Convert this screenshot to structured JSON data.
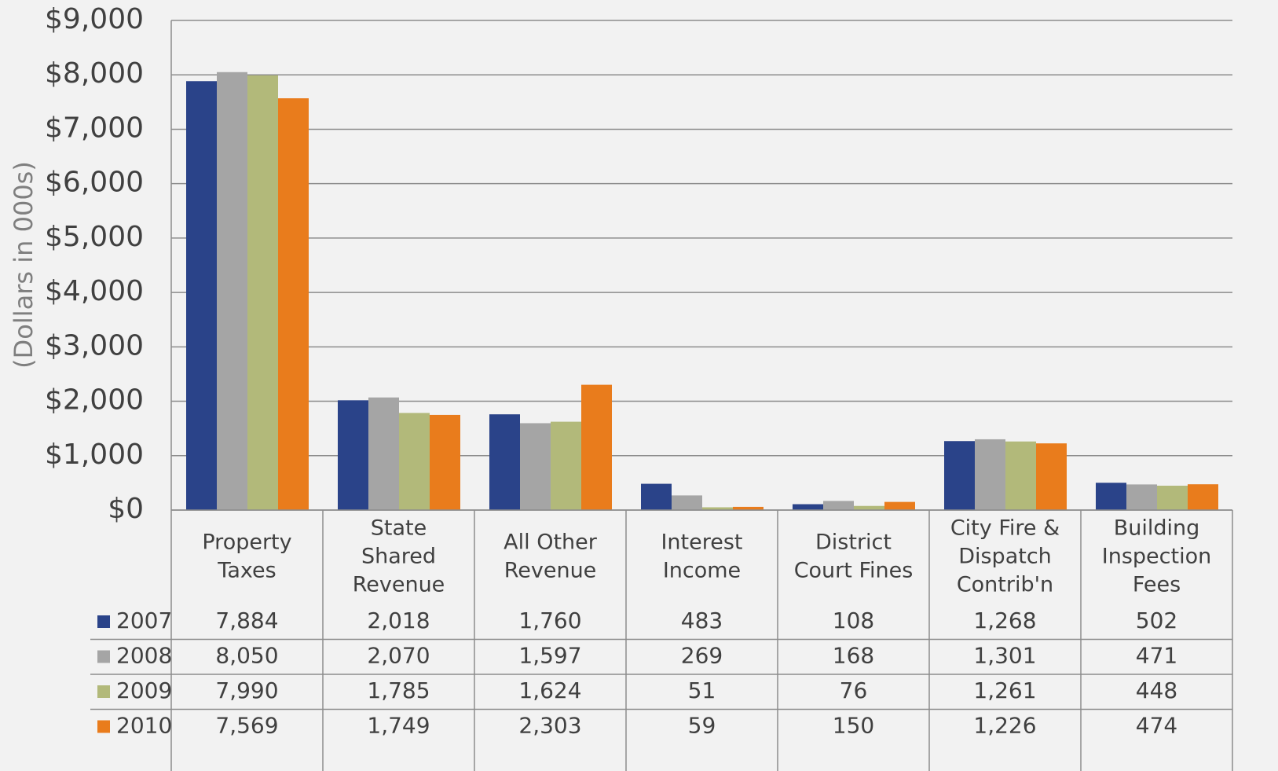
{
  "chart_data": {
    "type": "bar",
    "y_label": "(Dollars in 000s)",
    "categories": [
      [
        "Property",
        "Taxes"
      ],
      [
        "State",
        "Shared",
        "Revenue"
      ],
      [
        "All Other",
        "Revenue"
      ],
      [
        "Interest",
        "Income"
      ],
      [
        "District",
        "Court Fines"
      ],
      [
        "City Fire &",
        "Dispatch",
        "Contrib'n"
      ],
      [
        "Building",
        "Inspection",
        "Fees"
      ]
    ],
    "series": [
      {
        "name": "2007",
        "color": "#2a4389",
        "values": [
          7884,
          2018,
          1760,
          483,
          108,
          1268,
          502
        ],
        "value_labels": [
          "7,884",
          "2,018",
          "1,760",
          "483",
          "108",
          "1,268",
          "502"
        ]
      },
      {
        "name": "2008",
        "color": "#a5a5a5",
        "values": [
          8050,
          2070,
          1597,
          269,
          168,
          1301,
          471
        ],
        "value_labels": [
          "8,050",
          "2,070",
          "1,597",
          "269",
          "168",
          "1,301",
          "471"
        ]
      },
      {
        "name": "2009",
        "color": "#b2b97a",
        "values": [
          7990,
          1785,
          1624,
          51,
          76,
          1261,
          448
        ],
        "value_labels": [
          "7,990",
          "1,785",
          "1,624",
          "51",
          "76",
          "1,261",
          "448"
        ]
      },
      {
        "name": "2010",
        "color": "#e97c1c",
        "values": [
          7569,
          1749,
          2303,
          59,
          150,
          1226,
          474
        ],
        "value_labels": [
          "7,569",
          "1,749",
          "2,303",
          "59",
          "150",
          "1,226",
          "474"
        ]
      }
    ],
    "ylim": [
      0,
      9000
    ],
    "yticks": [
      {
        "value": 0,
        "label": "$0"
      },
      {
        "value": 1000,
        "label": "$1,000"
      },
      {
        "value": 2000,
        "label": "$2,000"
      },
      {
        "value": 3000,
        "label": "$3,000"
      },
      {
        "value": 4000,
        "label": "$4,000"
      },
      {
        "value": 5000,
        "label": "$5,000"
      },
      {
        "value": 6000,
        "label": "$6,000"
      },
      {
        "value": 7000,
        "label": "$7,000"
      },
      {
        "value": 8000,
        "label": "$8,000"
      },
      {
        "value": 9000,
        "label": "$9,000"
      }
    ],
    "grid": true,
    "data_table": true
  }
}
